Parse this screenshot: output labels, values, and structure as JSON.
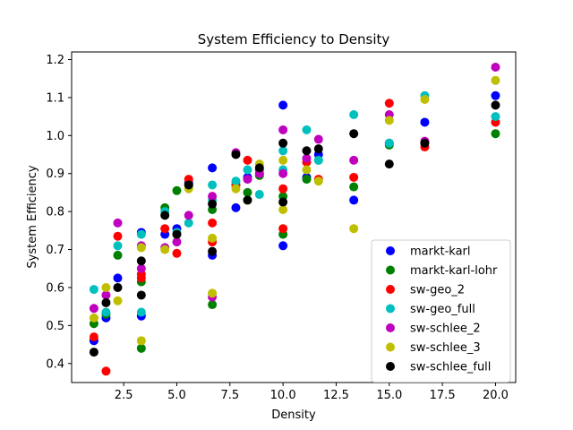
{
  "chart_data": {
    "type": "scatter",
    "title": "System Efficiency to Density",
    "xlabel": "Density",
    "ylabel": "System Efficiency",
    "xlim": [
      0.05,
      20.95
    ],
    "ylim": [
      0.35,
      1.22
    ],
    "xticks": [
      2.5,
      5.0,
      7.5,
      10.0,
      12.5,
      15.0,
      17.5,
      20.0
    ],
    "xtick_labels": [
      "2.5",
      "5.0",
      "7.5",
      "10.0",
      "12.5",
      "15.0",
      "17.5",
      "20.0"
    ],
    "yticks": [
      0.4,
      0.5,
      0.6,
      0.7,
      0.8,
      0.9,
      1.0,
      1.1,
      1.2
    ],
    "ytick_labels": [
      "0.4",
      "0.5",
      "0.6",
      "0.7",
      "0.8",
      "0.9",
      "1.0",
      "1.1",
      "1.2"
    ],
    "grid": false,
    "legend_position": "lower right",
    "series": [
      {
        "name": "markt-karl",
        "color": "#0000ff",
        "points": [
          [
            1.1,
            0.46
          ],
          [
            1.67,
            0.52
          ],
          [
            2.22,
            0.625
          ],
          [
            3.33,
            0.525
          ],
          [
            3.33,
            0.745
          ],
          [
            4.44,
            0.74
          ],
          [
            5.0,
            0.755
          ],
          [
            5.56,
            0.875
          ],
          [
            6.67,
            0.915
          ],
          [
            6.67,
            0.685
          ],
          [
            7.78,
            0.81
          ],
          [
            8.33,
            0.89
          ],
          [
            8.89,
            0.9
          ],
          [
            10.0,
            1.08
          ],
          [
            10.0,
            0.71
          ],
          [
            11.11,
            0.89
          ],
          [
            11.67,
            0.95
          ],
          [
            13.33,
            0.83
          ],
          [
            15.0,
            0.98
          ],
          [
            16.67,
            1.035
          ],
          [
            20.0,
            1.105
          ]
        ]
      },
      {
        "name": "markt-karl-lohr",
        "color": "#008000",
        "points": [
          [
            1.1,
            0.505
          ],
          [
            1.67,
            0.53
          ],
          [
            2.22,
            0.685
          ],
          [
            3.33,
            0.44
          ],
          [
            3.33,
            0.615
          ],
          [
            4.44,
            0.81
          ],
          [
            5.0,
            0.855
          ],
          [
            5.56,
            0.87
          ],
          [
            6.67,
            0.555
          ],
          [
            6.67,
            0.805
          ],
          [
            7.78,
            0.87
          ],
          [
            8.33,
            0.85
          ],
          [
            8.89,
            0.895
          ],
          [
            10.0,
            0.84
          ],
          [
            10.0,
            0.74
          ],
          [
            11.11,
            0.885
          ],
          [
            11.67,
            0.935
          ],
          [
            13.33,
            0.865
          ],
          [
            15.0,
            0.975
          ],
          [
            16.67,
            0.98
          ],
          [
            20.0,
            1.005
          ]
        ]
      },
      {
        "name": "sw-geo_2",
        "color": "#ff0000",
        "points": [
          [
            1.1,
            0.47
          ],
          [
            1.67,
            0.38
          ],
          [
            2.22,
            0.735
          ],
          [
            3.33,
            0.625
          ],
          [
            3.33,
            0.635
          ],
          [
            4.44,
            0.755
          ],
          [
            5.0,
            0.69
          ],
          [
            5.56,
            0.885
          ],
          [
            6.67,
            0.77
          ],
          [
            6.67,
            0.72
          ],
          [
            7.78,
            0.87
          ],
          [
            8.33,
            0.935
          ],
          [
            8.89,
            0.91
          ],
          [
            10.0,
            0.86
          ],
          [
            10.0,
            0.755
          ],
          [
            11.11,
            0.93
          ],
          [
            11.67,
            0.885
          ],
          [
            13.33,
            0.89
          ],
          [
            15.0,
            1.085
          ],
          [
            16.67,
            0.97
          ],
          [
            20.0,
            1.035
          ]
        ]
      },
      {
        "name": "sw-geo_full",
        "color": "#00bfbf",
        "points": [
          [
            1.1,
            0.595
          ],
          [
            1.67,
            0.535
          ],
          [
            2.22,
            0.71
          ],
          [
            3.33,
            0.74
          ],
          [
            3.33,
            0.535
          ],
          [
            4.44,
            0.8
          ],
          [
            5.0,
            0.745
          ],
          [
            5.56,
            0.77
          ],
          [
            6.67,
            0.87
          ],
          [
            6.67,
            0.83
          ],
          [
            7.78,
            0.88
          ],
          [
            8.33,
            0.91
          ],
          [
            8.89,
            0.845
          ],
          [
            10.0,
            0.91
          ],
          [
            10.0,
            0.96
          ],
          [
            11.11,
            1.015
          ],
          [
            11.67,
            0.935
          ],
          [
            13.33,
            1.055
          ],
          [
            15.0,
            0.98
          ],
          [
            16.67,
            1.105
          ],
          [
            20.0,
            1.05
          ]
        ]
      },
      {
        "name": "sw-schlee_2",
        "color": "#bf00bf",
        "points": [
          [
            1.1,
            0.545
          ],
          [
            1.67,
            0.58
          ],
          [
            2.22,
            0.77
          ],
          [
            3.33,
            0.65
          ],
          [
            3.33,
            0.71
          ],
          [
            4.44,
            0.705
          ],
          [
            5.0,
            0.72
          ],
          [
            5.56,
            0.79
          ],
          [
            6.67,
            0.84
          ],
          [
            6.67,
            0.575
          ],
          [
            7.78,
            0.955
          ],
          [
            8.33,
            0.885
          ],
          [
            8.89,
            0.9
          ],
          [
            10.0,
            1.015
          ],
          [
            10.0,
            0.9
          ],
          [
            11.11,
            0.94
          ],
          [
            11.67,
            0.99
          ],
          [
            13.33,
            0.935
          ],
          [
            15.0,
            1.055
          ],
          [
            16.67,
            0.985
          ],
          [
            20.0,
            1.18
          ]
        ]
      },
      {
        "name": "sw-schlee_3",
        "color": "#bfbf00",
        "points": [
          [
            1.1,
            0.52
          ],
          [
            1.67,
            0.6
          ],
          [
            2.22,
            0.565
          ],
          [
            3.33,
            0.46
          ],
          [
            3.33,
            0.705
          ],
          [
            4.44,
            0.7
          ],
          [
            5.0,
            0.74
          ],
          [
            5.56,
            0.86
          ],
          [
            6.67,
            0.73
          ],
          [
            6.67,
            0.585
          ],
          [
            7.78,
            0.86
          ],
          [
            8.33,
            0.83
          ],
          [
            8.89,
            0.925
          ],
          [
            10.0,
            0.805
          ],
          [
            10.0,
            0.935
          ],
          [
            11.11,
            0.91
          ],
          [
            11.67,
            0.88
          ],
          [
            13.33,
            0.755
          ],
          [
            15.0,
            1.04
          ],
          [
            16.67,
            1.095
          ],
          [
            20.0,
            1.145
          ]
        ]
      },
      {
        "name": "sw-schlee_full",
        "color": "#000000",
        "points": [
          [
            1.1,
            0.43
          ],
          [
            1.67,
            0.56
          ],
          [
            2.22,
            0.6
          ],
          [
            3.33,
            0.67
          ],
          [
            3.33,
            0.58
          ],
          [
            4.44,
            0.79
          ],
          [
            5.0,
            0.74
          ],
          [
            5.56,
            0.87
          ],
          [
            6.67,
            0.82
          ],
          [
            6.67,
            0.695
          ],
          [
            7.78,
            0.95
          ],
          [
            8.33,
            0.83
          ],
          [
            8.89,
            0.915
          ],
          [
            10.0,
            0.98
          ],
          [
            10.0,
            0.825
          ],
          [
            11.11,
            0.96
          ],
          [
            11.67,
            0.965
          ],
          [
            13.33,
            1.005
          ],
          [
            15.0,
            0.925
          ],
          [
            16.67,
            0.98
          ],
          [
            20.0,
            1.08
          ]
        ]
      }
    ]
  }
}
